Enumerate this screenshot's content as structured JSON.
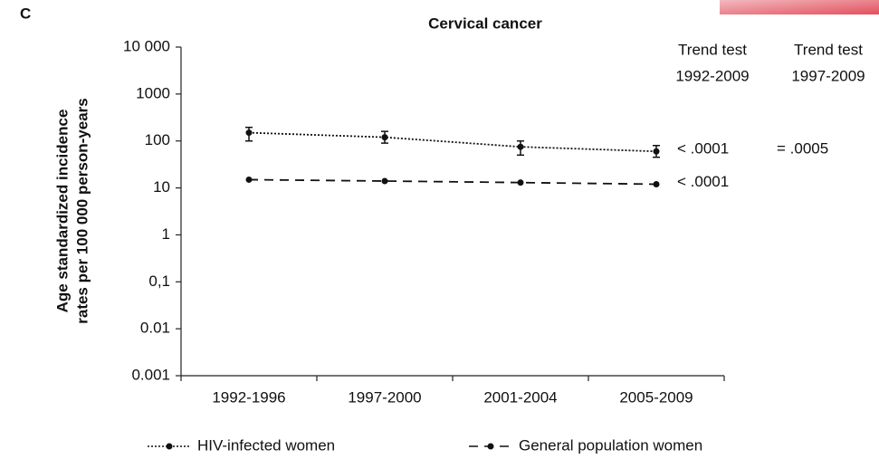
{
  "chart_data": {
    "type": "line",
    "panel_label": "C",
    "title": "Cervical cancer",
    "y_label": [
      "Age standardized incidence",
      "rates per 100 000 person-years"
    ],
    "categories": [
      "1992-1996",
      "1997-2000",
      "2001-2004",
      "2005-2009"
    ],
    "log_scale": true,
    "ylim": [
      0.001,
      10000
    ],
    "yticks": [
      0.001,
      0.01,
      {
        "value": 0.1,
        "label": "0,1"
      },
      1,
      10,
      100,
      1000,
      {
        "value": 10000,
        "label": "10 000"
      }
    ],
    "trend_test_headers": [
      [
        "Trend test",
        "1992-2009"
      ],
      [
        "Trend test",
        "1997-2009"
      ]
    ],
    "series": [
      {
        "name": "HIV-infected women",
        "color": "#111111",
        "line_style": "dotted",
        "values": [
          150,
          120,
          75,
          60
        ],
        "lower": [
          100,
          90,
          50,
          45
        ],
        "upper": [
          195,
          160,
          100,
          80
        ],
        "trend_tests": [
          "< .0001",
          "= .0005"
        ]
      },
      {
        "name": "General population women",
        "color": "#111111",
        "line_style": "dashed",
        "values": [
          15,
          14,
          13,
          12
        ],
        "trend_tests": [
          "< .0001"
        ]
      }
    ]
  }
}
